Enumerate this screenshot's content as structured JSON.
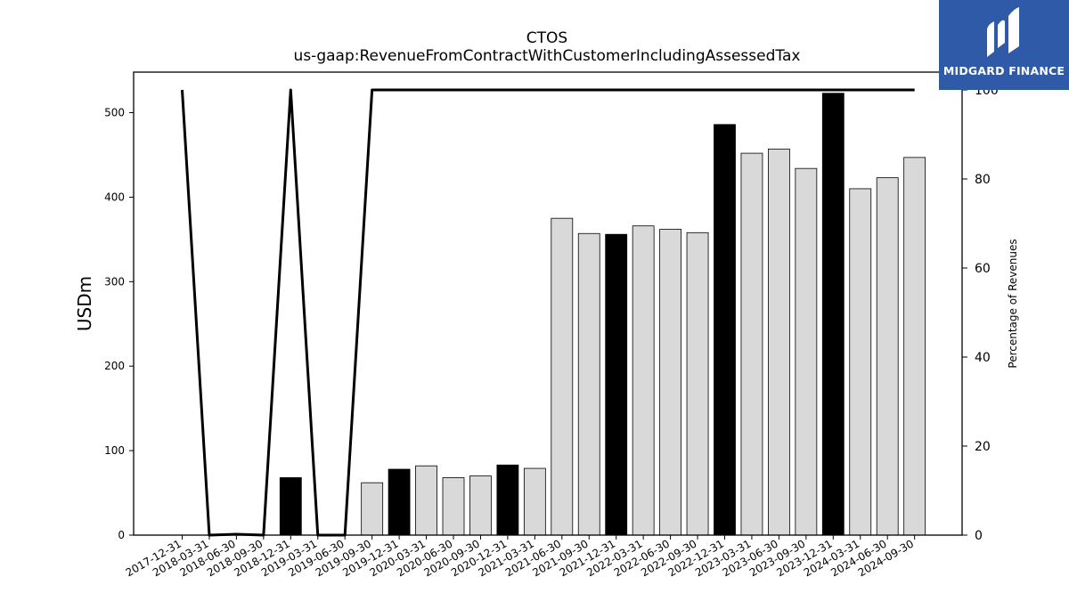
{
  "logo": {
    "text": "MIDGARD FINANCE",
    "icon": "midgard-logo-icon",
    "bg_color": "#2e5aa8"
  },
  "chart_data": {
    "type": "bar",
    "title": "CTOS",
    "subtitle": "us-gaap:RevenueFromContractWithCustomerIncludingAssessedTax",
    "ylabel": "USDm",
    "ylabel_right": "Percentage of Revenues",
    "ylim": [
      0,
      548
    ],
    "ylim_right": [
      0,
      104
    ],
    "yticks": [
      0,
      100,
      200,
      300,
      400,
      500
    ],
    "yticks_right": [
      0,
      20,
      40,
      60,
      80,
      100
    ],
    "grid": false,
    "categories": [
      "2017-12-31",
      "2018-03-31",
      "2018-06-30",
      "2018-09-30",
      "2018-12-31",
      "2019-03-31",
      "2019-06-30",
      "2019-09-30",
      "2019-12-31",
      "2020-03-31",
      "2020-06-30",
      "2020-09-30",
      "2020-12-31",
      "2021-03-31",
      "2021-06-30",
      "2021-09-30",
      "2021-12-31",
      "2022-03-31",
      "2022-06-30",
      "2022-09-30",
      "2022-12-31",
      "2023-03-31",
      "2023-06-30",
      "2023-09-30",
      "2023-12-31",
      "2024-03-31",
      "2024-06-30",
      "2024-09-30"
    ],
    "series": [
      {
        "kind": "bar",
        "values": [
          null,
          null,
          null,
          null,
          68,
          null,
          null,
          62,
          78,
          82,
          68,
          70,
          83,
          79,
          375,
          357,
          356,
          366,
          362,
          358,
          486,
          452,
          457,
          434,
          523,
          410,
          423,
          447
        ],
        "highlight": [
          false,
          false,
          false,
          false,
          true,
          false,
          false,
          false,
          true,
          false,
          false,
          false,
          true,
          false,
          false,
          false,
          true,
          false,
          false,
          false,
          true,
          false,
          false,
          false,
          true,
          false,
          false,
          false
        ],
        "color": "#d9d9d9",
        "highlight_color": "#000000"
      },
      {
        "kind": "line",
        "axis": "right",
        "values": [
          100,
          0,
          0.2,
          0,
          100,
          0,
          0,
          100,
          100,
          100,
          100,
          100,
          100,
          100,
          100,
          100,
          100,
          100,
          100,
          100,
          100,
          100,
          100,
          100,
          100,
          100,
          100,
          100
        ],
        "color": "#000000"
      }
    ]
  }
}
